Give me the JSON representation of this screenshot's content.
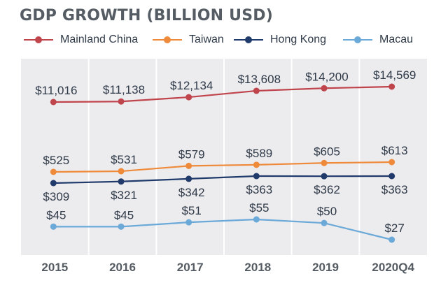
{
  "chart_data": {
    "type": "line",
    "title": "GDP GROWTH (BILLION USD)",
    "categories": [
      "2015",
      "2016",
      "2017",
      "2018",
      "2019",
      "2020Q4"
    ],
    "series": [
      {
        "name": "Mainland China",
        "color": "#c0444b",
        "values": [
          11016,
          11138,
          12134,
          13608,
          14200,
          14569
        ],
        "labels": [
          "$11,016",
          "$11,138",
          "$12,134",
          "$13,608",
          "$14,200",
          "$14,569"
        ],
        "label_position": "above"
      },
      {
        "name": "Taiwan",
        "color": "#ee8a3a",
        "values": [
          525,
          531,
          579,
          589,
          605,
          613
        ],
        "labels": [
          "$525",
          "$531",
          "$579",
          "$589",
          "$605",
          "$613"
        ],
        "label_position": "above"
      },
      {
        "name": "Hong Kong",
        "color": "#1f3a6b",
        "values": [
          309,
          321,
          342,
          363,
          362,
          363
        ],
        "labels": [
          "$309",
          "$321",
          "$342",
          "$363",
          "$362",
          "$363"
        ],
        "label_position": "below"
      },
      {
        "name": "Macau",
        "color": "#6aa9d8",
        "values": [
          45,
          45,
          51,
          55,
          50,
          27
        ],
        "labels": [
          "$45",
          "$45",
          "$51",
          "$55",
          "$50",
          "$27"
        ],
        "label_position": "above"
      }
    ],
    "legend": "top",
    "grid": "vertical-bands",
    "background": "#ecebee"
  }
}
